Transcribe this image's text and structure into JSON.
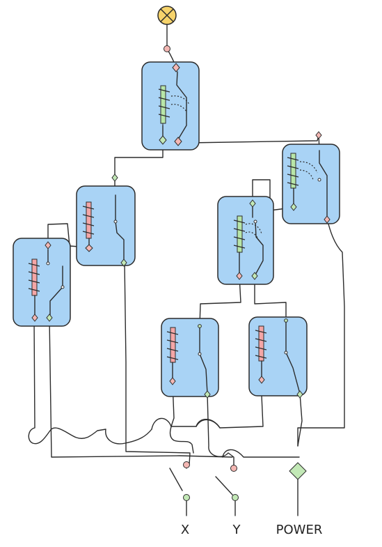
{
  "diagram": {
    "title": "",
    "inputs": [
      {
        "id": "x",
        "label": "X"
      },
      {
        "id": "y",
        "label": "Y"
      }
    ],
    "power": {
      "label": "POWER"
    },
    "output": {
      "icon": "lamp-icon"
    },
    "relays": [
      {
        "id": "r1",
        "coil": "green",
        "state": "energized"
      },
      {
        "id": "r2",
        "coil": "red",
        "state": "off"
      },
      {
        "id": "r3",
        "coil": "red",
        "state": "off"
      },
      {
        "id": "r4",
        "coil": "green",
        "state": "energized"
      },
      {
        "id": "r5",
        "coil": "green",
        "state": "energized"
      },
      {
        "id": "r6",
        "coil": "red",
        "state": "off"
      },
      {
        "id": "r7",
        "coil": "red",
        "state": "off"
      }
    ],
    "colors": {
      "relay_fill": "#a9d3f5",
      "coil_on": "#b8e6a8",
      "coil_off": "#f4a6a6",
      "terminal_on": "#c2e8b6",
      "terminal_off": "#f4b7b3",
      "lamp": "#f6d36b"
    }
  }
}
